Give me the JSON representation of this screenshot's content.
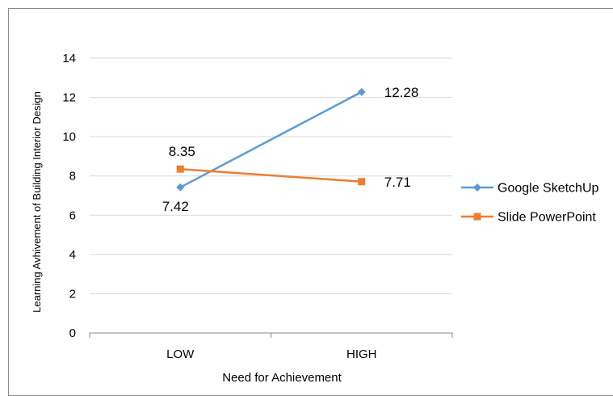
{
  "chart_data": {
    "type": "line",
    "categories": [
      "LOW",
      "HIGH"
    ],
    "xlabel": "Need for Achievement",
    "ylabel": "Learning Avhivement of Building Interior Design",
    "ylim": [
      0,
      14
    ],
    "yticks": [
      0,
      2,
      4,
      6,
      8,
      10,
      12,
      14
    ],
    "grid": true,
    "legend_position": "right",
    "series": [
      {
        "name": "Google SketchUp",
        "values": [
          7.42,
          12.28
        ],
        "labels": [
          "7.42",
          "12.28"
        ],
        "color": "#5B9BD5",
        "marker": "diamond"
      },
      {
        "name": "Slide PowerPoint",
        "values": [
          8.35,
          7.71
        ],
        "labels": [
          "8.35",
          "7.71"
        ],
        "color": "#ED7D31",
        "marker": "square"
      }
    ]
  }
}
